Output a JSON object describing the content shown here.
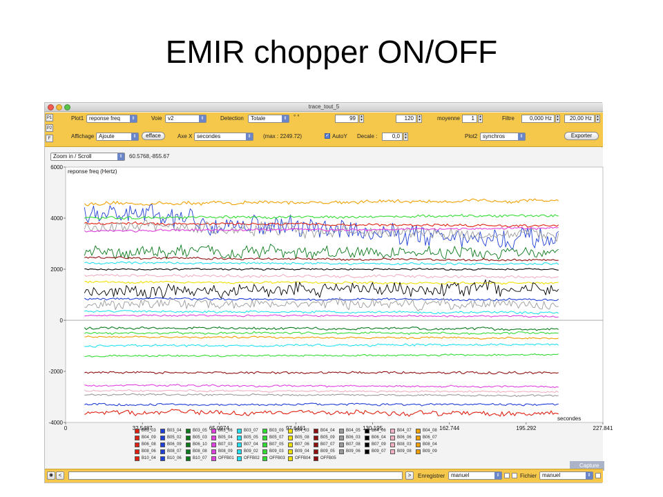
{
  "slide": {
    "title": "EMIR chopper ON/OFF"
  },
  "window": {
    "title": "trace_tout_5"
  },
  "plot_tabs": [
    "P1",
    "P2",
    "F"
  ],
  "toolbar": {
    "plot1_label": "Plot1",
    "plot1_value": "reponse freq",
    "voie_label": "Voie",
    "voie_value": "v2",
    "detection_label": "Detection",
    "detection_value": "Totale",
    "detection_extra": "° °",
    "val_99": "99",
    "val_120": "120",
    "moyenne_label": "moyenne",
    "moyenne_value": "1",
    "filtre_label": "Filtre",
    "filtre_low": "0,000 Hz",
    "filtre_high": "20,00 Hz",
    "affichage_label": "Affichage",
    "affichage_value": "Ajoute",
    "efface_label": "efface",
    "axex_label": "Axe X",
    "axex_value": "secondes",
    "max_text": "(max : 2249.72)",
    "autoy_label": "AutoY",
    "decale_label": "Decale :",
    "decale_value": "0,0",
    "plot2_label": "Plot2",
    "plot2_value": "synchros",
    "exporter_label": "Exporter"
  },
  "zoom": {
    "value": "Zoom in / Scroll",
    "coords": "60.5768,-855.67"
  },
  "capture_label": "Capture",
  "colors": {
    "toolbar": "#f5c84c",
    "blue": "#1f3fd6",
    "green": "#0a7a1a",
    "black": "#000000",
    "gray": "#9a9a9a",
    "orange": "#f0a000",
    "red": "#e02010",
    "darkred": "#901010",
    "cyan": "#22e0f0",
    "lime": "#33dd33",
    "magenta": "#e040e0",
    "pink": "#f0b0c0",
    "yellow": "#f0e000"
  },
  "chart_data": {
    "type": "line",
    "ylabel": "reponse freq (Hertz)",
    "xlabel": "secondes",
    "xlim": [
      0,
      227.841
    ],
    "ylim": [
      -4000,
      6000
    ],
    "x_ticks": [
      "0",
      "32.5487",
      "65.0974",
      "97.6461",
      "130.195",
      "162.744",
      "195.292",
      "227.841"
    ],
    "y_ticks": [
      "6000",
      "4000",
      "2000",
      "0",
      "-2000",
      "-4000"
    ],
    "x_end": 209,
    "series": [
      {
        "color": "#f0a000",
        "level": 4550,
        "end": 4700,
        "noise": 80
      },
      {
        "color": "#1f3fd6",
        "level": 4150,
        "end": 3050,
        "noise": 500
      },
      {
        "color": "#33dd33",
        "level": 4000,
        "end": 4100,
        "noise": 60
      },
      {
        "color": "#e02010",
        "level": 3800,
        "end": 3700,
        "noise": 60
      },
      {
        "color": "#9a9a9a",
        "level": 3700,
        "end": 3300,
        "noise": 280
      },
      {
        "color": "#e040e0",
        "level": 3500,
        "end": 3600,
        "noise": 50
      },
      {
        "color": "#0a7a1a",
        "level": 2700,
        "end": 2600,
        "noise": 280
      },
      {
        "color": "#901010",
        "level": 2450,
        "end": 2350,
        "noise": 50
      },
      {
        "color": "#22e0f0",
        "level": 2250,
        "end": 2200,
        "noise": 50
      },
      {
        "color": "#000000",
        "level": 2000,
        "end": 2000,
        "noise": 40
      },
      {
        "color": "#f0b0c0",
        "level": 1750,
        "end": 1700,
        "noise": 60
      },
      {
        "color": "#f0e000",
        "level": 1500,
        "end": 1450,
        "noise": 50
      },
      {
        "color": "#000000",
        "level": 1150,
        "end": 1250,
        "noise": 320
      },
      {
        "color": "#1f3fd6",
        "level": 850,
        "end": 800,
        "noise": 50
      },
      {
        "color": "#9a9a9a",
        "level": 650,
        "end": 600,
        "noise": 220
      },
      {
        "color": "#22e0f0",
        "level": 350,
        "end": 300,
        "noise": 50
      },
      {
        "color": "#e040e0",
        "level": 200,
        "end": 150,
        "noise": 40
      },
      {
        "color": "#0a7a1a",
        "level": -300,
        "end": -350,
        "noise": 60
      },
      {
        "color": "#33dd33",
        "level": -500,
        "end": -500,
        "noise": 50
      },
      {
        "color": "#f0a000",
        "level": -650,
        "end": -700,
        "noise": 40
      },
      {
        "color": "#22e0f0",
        "level": -1000,
        "end": -950,
        "noise": 50
      },
      {
        "color": "#33dd33",
        "level": -1400,
        "end": -1350,
        "noise": 40
      },
      {
        "color": "#901010",
        "level": -2050,
        "end": -2050,
        "noise": 50
      },
      {
        "color": "#e040e0",
        "level": -2550,
        "end": -2600,
        "noise": 40
      },
      {
        "color": "#f0b0c0",
        "level": -2750,
        "end": -2800,
        "noise": 40
      },
      {
        "color": "#9a9a9a",
        "level": -2900,
        "end": -2950,
        "noise": 40
      },
      {
        "color": "#1f3fd6",
        "level": -3300,
        "end": -3300,
        "noise": 50
      },
      {
        "color": "#e02010",
        "level": -3600,
        "end": -3650,
        "noise": 110
      }
    ],
    "legend": [
      {
        "name": "B03_03",
        "color": "#e02010"
      },
      {
        "name": "B03_04",
        "color": "#1f3fd6"
      },
      {
        "name": "B03_05",
        "color": "#0a7a1a"
      },
      {
        "name": "B03_06",
        "color": "#e040e0"
      },
      {
        "name": "B03_07",
        "color": "#22e0f0"
      },
      {
        "name": "B03_09",
        "color": "#33dd33"
      },
      {
        "name": "B04_03",
        "color": "#f0e000"
      },
      {
        "name": "B04_04",
        "color": "#901010"
      },
      {
        "name": "B04_05",
        "color": "#9a9a9a"
      },
      {
        "name": "B04_06",
        "color": "#000000"
      },
      {
        "name": "B04_07",
        "color": "#f0b0c0"
      },
      {
        "name": "B04_08",
        "color": "#f0a000"
      },
      {
        "name": "B04_09",
        "color": "#e02010"
      },
      {
        "name": "B05_02",
        "color": "#1f3fd6"
      },
      {
        "name": "B05_03",
        "color": "#0a7a1a"
      },
      {
        "name": "B05_04",
        "color": "#e040e0"
      },
      {
        "name": "B05_05",
        "color": "#22e0f0"
      },
      {
        "name": "B05_07",
        "color": "#33dd33"
      },
      {
        "name": "B05_08",
        "color": "#f0e000"
      },
      {
        "name": "B05_09",
        "color": "#901010"
      },
      {
        "name": "B06_03",
        "color": "#9a9a9a"
      },
      {
        "name": "B06_04",
        "color": "#000000"
      },
      {
        "name": "B06_06",
        "color": "#f0b0c0"
      },
      {
        "name": "B06_07",
        "color": "#f0a000"
      },
      {
        "name": "B06_08",
        "color": "#e02010"
      },
      {
        "name": "B06_09",
        "color": "#1f3fd6"
      },
      {
        "name": "B06_10",
        "color": "#0a7a1a"
      },
      {
        "name": "B07_03",
        "color": "#e040e0"
      },
      {
        "name": "B07_04",
        "color": "#22e0f0"
      },
      {
        "name": "B07_05",
        "color": "#33dd33"
      },
      {
        "name": "B07_06",
        "color": "#f0e000"
      },
      {
        "name": "B07_07",
        "color": "#901010"
      },
      {
        "name": "B07_08",
        "color": "#9a9a9a"
      },
      {
        "name": "B07_09",
        "color": "#000000"
      },
      {
        "name": "B08_03",
        "color": "#f0b0c0"
      },
      {
        "name": "B08_04",
        "color": "#f0a000"
      },
      {
        "name": "B08_06",
        "color": "#e02010"
      },
      {
        "name": "B08_07",
        "color": "#1f3fd6"
      },
      {
        "name": "B08_08",
        "color": "#0a7a1a"
      },
      {
        "name": "B08_09",
        "color": "#e040e0"
      },
      {
        "name": "B09_02",
        "color": "#22e0f0"
      },
      {
        "name": "B09_03",
        "color": "#33dd33"
      },
      {
        "name": "B09_04",
        "color": "#f0e000"
      },
      {
        "name": "B09_05",
        "color": "#901010"
      },
      {
        "name": "B09_06",
        "color": "#9a9a9a"
      },
      {
        "name": "B09_07",
        "color": "#000000"
      },
      {
        "name": "B09_08",
        "color": "#f0b0c0"
      },
      {
        "name": "B09_09",
        "color": "#f0a000"
      },
      {
        "name": "B10_04",
        "color": "#e02010"
      },
      {
        "name": "B10_06",
        "color": "#1f3fd6"
      },
      {
        "name": "B10_07",
        "color": "#0a7a1a"
      },
      {
        "name": "OFFB01",
        "color": "#e040e0"
      },
      {
        "name": "OFFB02",
        "color": "#22e0f0"
      },
      {
        "name": "OFFB03",
        "color": "#33dd33"
      },
      {
        "name": "OFFB04",
        "color": "#f0e000"
      },
      {
        "name": "OFFB05",
        "color": "#901010"
      }
    ]
  },
  "bottom": {
    "enregistrer_label": "Enregistrer",
    "enregistrer_value": "manuel",
    "fichier_label": "Fichier",
    "fichier_value": "manuel",
    "gt_label": ">",
    "lt_label": "<"
  }
}
